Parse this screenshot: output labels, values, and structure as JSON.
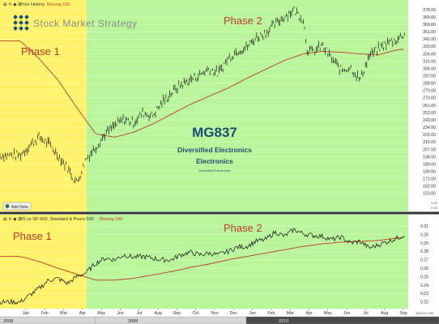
{
  "colors": {
    "phase1_bg": "#FFF36B",
    "phase2_bg": "#B9F59A",
    "price": "#000000",
    "moving_avg": "#C0392B",
    "phase_label": "#C0392B",
    "title": "#1B4F72",
    "footer_bg": "#D6D6D6",
    "footer_dark": "#4A4A4A"
  },
  "top_panel": {
    "legend_price": "Price History",
    "legend_ma": "Moving 150",
    "brand": "Stock Market Strategy",
    "phase1_label": "Phase 1",
    "phase2_label": "Phase 2",
    "ticker": "MG837",
    "industry_group": "Diversified Electronics",
    "sector": "Electronics",
    "subgroup": "Diversified Electronics",
    "add_note_label": "Add Note",
    "small_values": [
      "0.00",
      "0.00"
    ]
  },
  "bottom_panel": {
    "legend_rs": "RS vs SP-500, Standard & Poors 500",
    "legend_ma": "Moving 150",
    "phase1_label": "Phase 1",
    "phase2_label": "Phase 2",
    "last_date": "10/1/10 4:00"
  },
  "chart_data": [
    {
      "type": "line",
      "panel": "price",
      "title": "MG837",
      "subtitle": "Diversified Electronics",
      "y_ticks": [
        153.0,
        162.0,
        171.0,
        180.0,
        189.0,
        198.0,
        207.0,
        216.0,
        225.0,
        234.0,
        243.0,
        252.0,
        261.0,
        270.0,
        279.0,
        288.0,
        297.0,
        306.0,
        315.0,
        324.0,
        333.0,
        342.0,
        351.0,
        360.0,
        369.0,
        378.0
      ],
      "ylim": [
        146,
        382
      ],
      "x_month_labels": [
        "Jan",
        "Feb",
        "Mar",
        "Apr",
        "May",
        "Jun",
        "Jul",
        "Aug",
        "Sep",
        "Oct",
        "Nov",
        "Dec",
        "Jan",
        "Feb",
        "Mar",
        "Apr",
        "May",
        "Jun",
        "Jul",
        "Aug",
        "Sep"
      ],
      "year_labels": [
        "2008",
        "2009",
        "2010"
      ],
      "phase_boundary_month": "Apr",
      "series": [
        {
          "name": "Price History",
          "months": [
            0,
            0.5,
            1,
            1.5,
            2,
            2.5,
            3,
            3.5,
            4,
            4.5,
            5,
            5.5,
            6,
            6.5,
            7,
            7.5,
            8,
            8.5,
            9,
            9.5,
            10,
            10.5,
            11,
            11.5,
            12,
            12.5,
            13,
            13.5,
            14,
            14.5,
            15,
            15.2,
            15.5,
            16,
            16.5,
            17,
            17.5,
            18,
            18.5,
            19,
            19.5,
            20,
            20.4
          ],
          "values": [
            200,
            212,
            222,
            214,
            200,
            184,
            166,
            196,
            210,
            226,
            236,
            244,
            240,
            252,
            248,
            264,
            276,
            286,
            292,
            298,
            306,
            300,
            318,
            328,
            332,
            344,
            350,
            360,
            370,
            378,
            366,
            330,
            326,
            334,
            318,
            304,
            308,
            292,
            322,
            330,
            338,
            342,
            350
          ]
        },
        {
          "name": "Moving 150",
          "months": [
            0,
            1,
            2,
            3,
            4,
            5,
            6,
            7,
            8,
            9,
            10,
            11,
            12,
            13,
            14,
            15,
            16,
            17,
            18,
            19,
            20,
            20.4
          ],
          "values": [
            340,
            318,
            292,
            258,
            226,
            222,
            228,
            238,
            250,
            262,
            272,
            282,
            294,
            305,
            316,
            324,
            327,
            326,
            324,
            323,
            329,
            330
          ]
        }
      ]
    },
    {
      "type": "line",
      "panel": "relative_strength",
      "title": "RS vs SP-500, Standard & Poors 500",
      "y_ticks": [
        0.22,
        0.23,
        0.24,
        0.25,
        0.26,
        0.27,
        0.28,
        0.29,
        0.3,
        0.31
      ],
      "ylim": [
        0.215,
        0.315
      ],
      "series": [
        {
          "name": "RS vs SP-500",
          "months": [
            0,
            0.5,
            1,
            1.5,
            2,
            2.5,
            3,
            3.5,
            4,
            4.5,
            5,
            5.5,
            6,
            6.5,
            7,
            7.5,
            8,
            8.5,
            9,
            9.5,
            10,
            10.5,
            11,
            11.5,
            12,
            12.5,
            13,
            13.5,
            14,
            14.5,
            15,
            15.5,
            16,
            16.5,
            17,
            17.5,
            18,
            18.5,
            19,
            19.5,
            20,
            20.4
          ],
          "values": [
            0.22,
            0.228,
            0.236,
            0.246,
            0.248,
            0.242,
            0.25,
            0.255,
            0.266,
            0.272,
            0.27,
            0.276,
            0.273,
            0.274,
            0.272,
            0.27,
            0.27,
            0.276,
            0.279,
            0.276,
            0.278,
            0.276,
            0.28,
            0.285,
            0.286,
            0.292,
            0.294,
            0.303,
            0.298,
            0.306,
            0.301,
            0.299,
            0.298,
            0.294,
            0.297,
            0.29,
            0.292,
            0.284,
            0.288,
            0.292,
            0.296,
            0.3
          ]
        },
        {
          "name": "Moving 150",
          "months": [
            0,
            1,
            2,
            3,
            4,
            5,
            6,
            7,
            8,
            9,
            10,
            11,
            12,
            13,
            14,
            15,
            16,
            17,
            18,
            19,
            20,
            20.4
          ],
          "values": [
            0.274,
            0.268,
            0.26,
            0.253,
            0.246,
            0.246,
            0.248,
            0.252,
            0.256,
            0.261,
            0.265,
            0.27,
            0.274,
            0.278,
            0.282,
            0.286,
            0.289,
            0.291,
            0.292,
            0.293,
            0.296,
            0.297
          ]
        }
      ]
    }
  ]
}
